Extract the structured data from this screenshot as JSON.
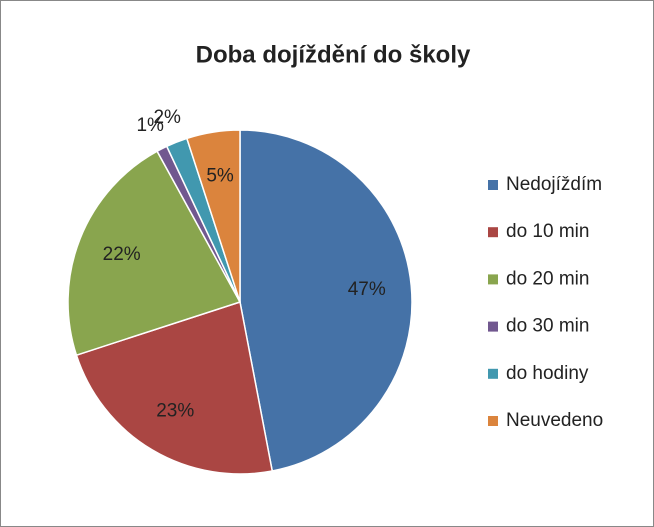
{
  "chart_data": {
    "type": "pie",
    "title": "Doba dojíždění do školy",
    "categories": [
      "Nedojíždím",
      "do 10 min",
      "do 20 min",
      "do 30 min",
      "do hodiny",
      "Neuvedeno"
    ],
    "values": [
      47,
      23,
      22,
      1,
      2,
      5
    ],
    "value_labels": [
      "47%",
      "23%",
      "22%",
      "1%",
      "2%",
      "5%"
    ],
    "colors": [
      "#4572a7",
      "#aa4643",
      "#89a54e",
      "#71588f",
      "#4198af",
      "#db843d"
    ],
    "legend": "right"
  }
}
